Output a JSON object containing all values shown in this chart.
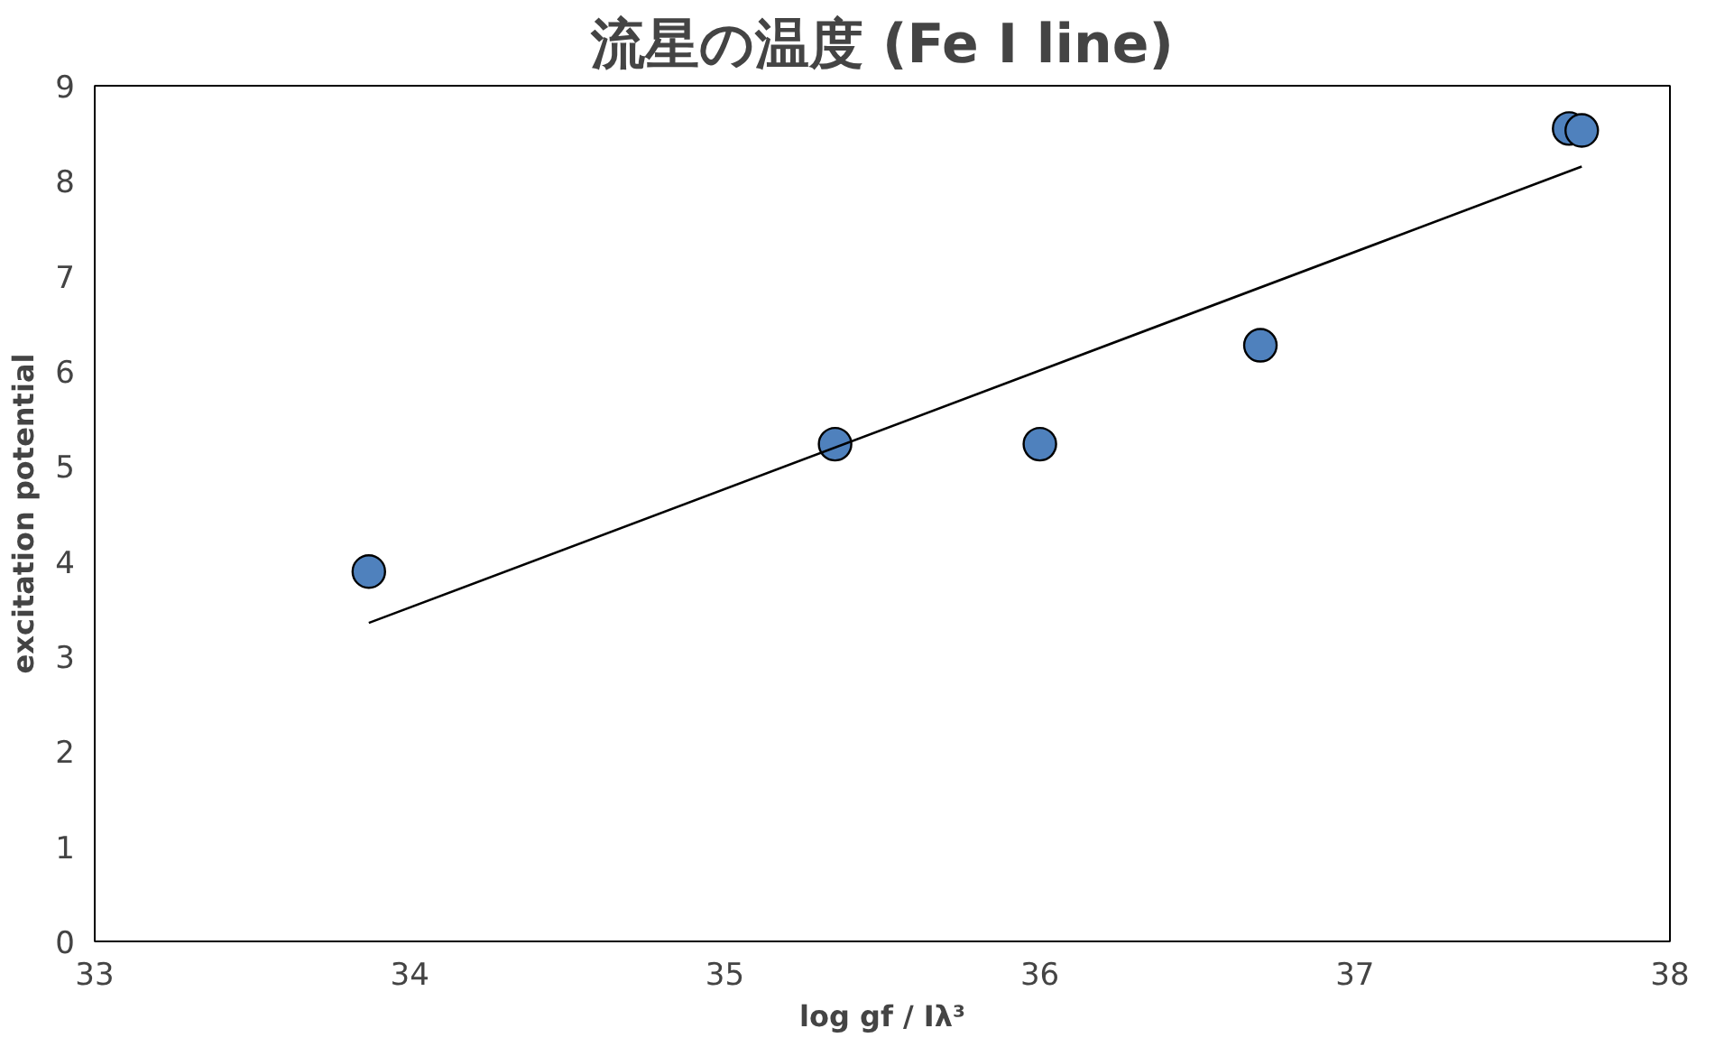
{
  "chart_data": {
    "type": "scatter",
    "title": "流星の温度 (Fe I line)",
    "xlabel": "log gf / Iλ³",
    "ylabel": "excitation potential",
    "xlim": [
      33,
      38
    ],
    "xticks": [
      33,
      34,
      35,
      36,
      37,
      38
    ],
    "ylim": [
      0,
      9
    ],
    "yticks": [
      0,
      1,
      2,
      3,
      4,
      5,
      6,
      7,
      8,
      9
    ],
    "grid": false,
    "marker": "circle",
    "series": [
      {
        "color": "#4f81bd",
        "x": [
          33.87,
          35.35,
          36.0,
          36.7,
          37.68,
          37.72
        ],
        "values": [
          3.89,
          5.23,
          5.23,
          6.27,
          8.55,
          8.53
        ]
      },
      {
        "type": "line",
        "marker": "none",
        "color": "#000000",
        "x": [
          33.87,
          37.72
        ],
        "values": [
          3.35,
          8.15
        ]
      }
    ]
  }
}
